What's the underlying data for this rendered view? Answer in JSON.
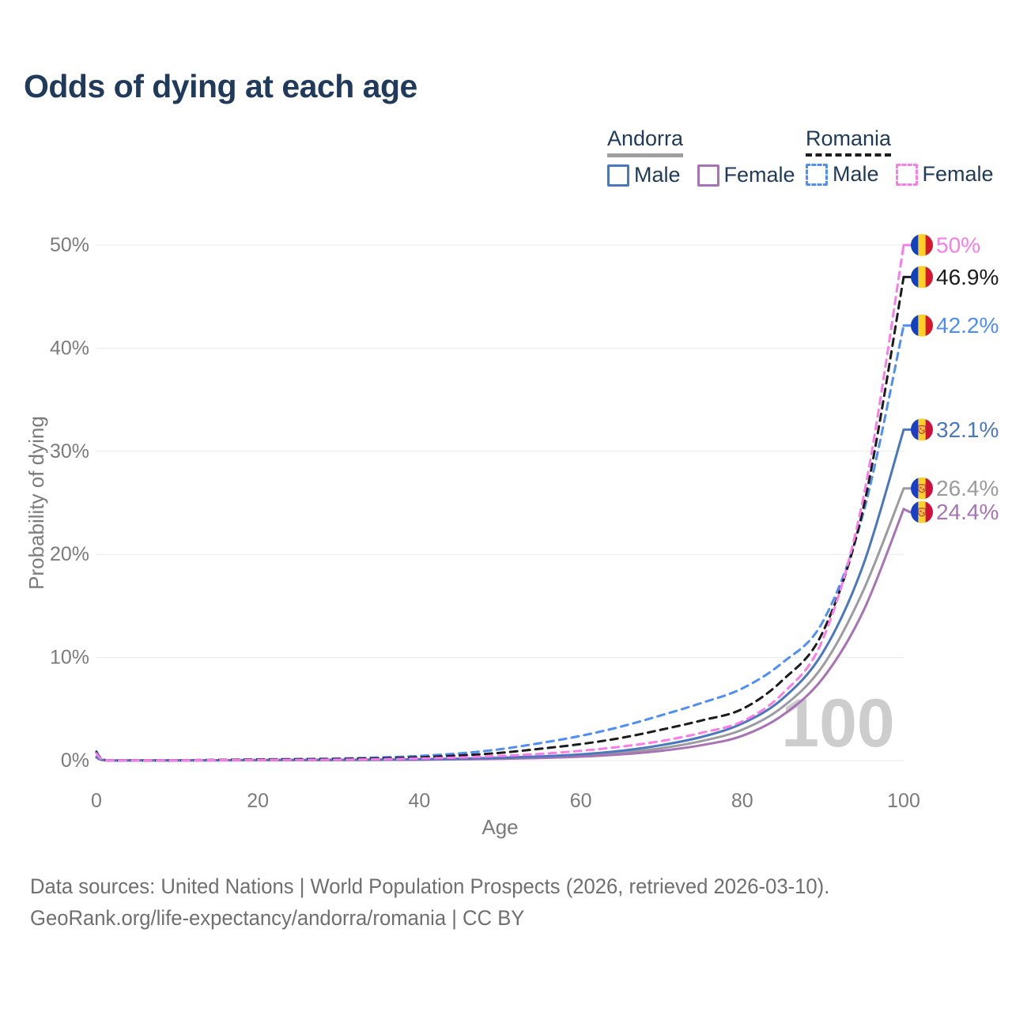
{
  "title": "Odds of dying at each age",
  "watermark_age": "100",
  "legend": {
    "groups": [
      {
        "country": "Andorra",
        "line_style": "solid",
        "underline_color": "#9e9ea3",
        "items": [
          {
            "label": "Male",
            "color": "#4a77bd",
            "dashed": false
          },
          {
            "label": "Female",
            "color": "#a873b5",
            "dashed": false
          }
        ]
      },
      {
        "country": "Romania",
        "line_style": "dashed",
        "underline_color": "#1c1c1c",
        "items": [
          {
            "label": "Male",
            "color": "#4f8ef7",
            "dashed": true
          },
          {
            "label": "Female",
            "color": "#fb7ce8",
            "dashed": true
          }
        ]
      }
    ]
  },
  "footer": {
    "line1": "Data sources: United Nations | World Population Prospects (2026, retrieved 2026-03-10).",
    "line2": "GeoRank.org/life-expectancy/andorra/romania | CC BY"
  },
  "chart_data": {
    "type": "line",
    "title": "Odds of dying at each age",
    "xlabel": "Age",
    "ylabel": "Probability of dying",
    "xlim": [
      0,
      100
    ],
    "ylim": [
      0,
      50
    ],
    "xticks": [
      "0",
      "20",
      "40",
      "60",
      "80",
      "100"
    ],
    "yticks": [
      "0%",
      "10%",
      "20%",
      "30%",
      "40%",
      "50%"
    ],
    "grid": "horizontal",
    "legend_position": "top-right",
    "x": [
      0,
      1,
      5,
      10,
      15,
      20,
      25,
      30,
      35,
      40,
      45,
      50,
      55,
      60,
      65,
      70,
      75,
      80,
      85,
      90,
      95,
      100
    ],
    "series": [
      {
        "name": "Andorra Total",
        "country": "andorra",
        "color": "#9c9ca0",
        "dashed": false,
        "end_label": "26.4%",
        "label_color": "#9b9b9b",
        "values": [
          0.33,
          0.035,
          0.018,
          0.018,
          0.03,
          0.045,
          0.05,
          0.06,
          0.08,
          0.1,
          0.15,
          0.22,
          0.32,
          0.5,
          0.78,
          1.2,
          1.9,
          3.0,
          5.2,
          9.2,
          16.5,
          26.4
        ]
      },
      {
        "name": "Andorra Female",
        "country": "andorra",
        "color": "#a873b5",
        "dashed": false,
        "end_label": "24.4%",
        "label_color": "#a873b5",
        "values": [
          0.3,
          0.03,
          0.015,
          0.015,
          0.02,
          0.03,
          0.035,
          0.045,
          0.06,
          0.08,
          0.12,
          0.17,
          0.25,
          0.38,
          0.6,
          0.95,
          1.5,
          2.4,
          4.4,
          8.0,
          14.5,
          24.4
        ]
      },
      {
        "name": "Andorra Male",
        "country": "andorra",
        "color": "#4a77bd",
        "dashed": false,
        "end_label": "32.1%",
        "label_color": "#4a77bd",
        "values": [
          0.35,
          0.04,
          0.02,
          0.02,
          0.04,
          0.06,
          0.07,
          0.08,
          0.1,
          0.13,
          0.18,
          0.27,
          0.4,
          0.6,
          0.95,
          1.5,
          2.3,
          3.6,
          6.0,
          10.5,
          19.0,
          32.1
        ]
      },
      {
        "name": "Romania Male",
        "country": "romania",
        "color": "#4f8ef7",
        "dashed": true,
        "end_label": "42.2%",
        "label_color": "#4f8ef7",
        "values": [
          0.9,
          0.08,
          0.04,
          0.04,
          0.07,
          0.12,
          0.16,
          0.2,
          0.3,
          0.45,
          0.7,
          1.1,
          1.7,
          2.4,
          3.3,
          4.4,
          5.6,
          7.0,
          9.5,
          13.5,
          24.0,
          42.2
        ]
      },
      {
        "name": "Romania Total",
        "country": "romania",
        "color": "#1c1c1c",
        "dashed": true,
        "end_label": "46.9%",
        "label_color": "#1c1c1c",
        "values": [
          0.8,
          0.07,
          0.035,
          0.035,
          0.06,
          0.1,
          0.12,
          0.15,
          0.22,
          0.32,
          0.5,
          0.75,
          1.15,
          1.6,
          2.2,
          3.0,
          3.9,
          5.0,
          7.8,
          12.5,
          24.5,
          46.9
        ]
      },
      {
        "name": "Romania Female",
        "country": "romania",
        "color": "#fb7ce8",
        "dashed": true,
        "end_label": "50%",
        "label_color": "#fb7ce8",
        "values": [
          0.7,
          0.06,
          0.03,
          0.03,
          0.04,
          0.06,
          0.07,
          0.09,
          0.13,
          0.2,
          0.3,
          0.45,
          0.65,
          0.95,
          1.35,
          1.9,
          2.7,
          3.8,
          6.5,
          11.8,
          25.5,
          50.0
        ]
      }
    ],
    "flag_colors": {
      "romania": [
        "#1141bc",
        "#fcd024",
        "#d6182e"
      ],
      "andorra": [
        "#1a3fc4",
        "#f8d12e",
        "#d0103a"
      ]
    }
  }
}
